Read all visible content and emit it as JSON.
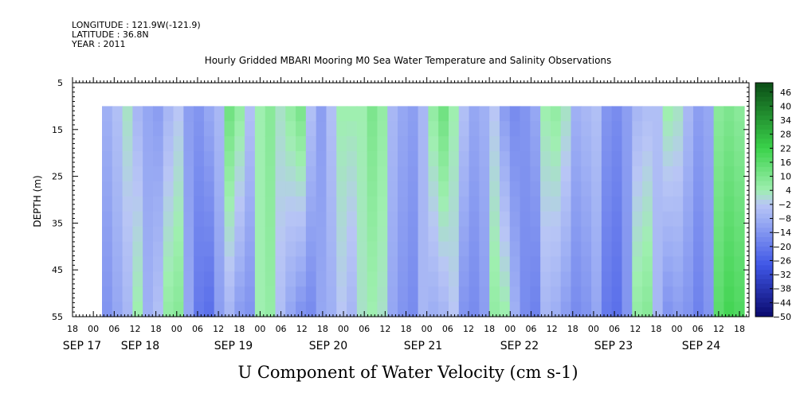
{
  "header": {
    "lines": [
      "LONGITUDE : 121.9W(-121.9)",
      "LATITUDE : 36.8N",
      "YEAR : 2011"
    ],
    "title": "Hourly Gridded MBARI Mooring M0 Sea Water Temperature and Salinity Observations"
  },
  "colors": {
    "neg_strong": "#0a0a6e",
    "neg_mid": "#3f56e6",
    "neg_light": "#9fb0f4",
    "near_zero": "#b9c6f5",
    "pos_light": "#9fefb0",
    "pos_mid": "#3ad24a",
    "pos_strong": "#0b4d16"
  },
  "chart_data": {
    "type": "heatmap",
    "title": "Hourly Gridded MBARI Mooring M0 Sea Water Temperature and Salinity Observations",
    "xlabel": "U Component of Water Velocity (cm s-1)",
    "ylabel": "DEPTH (m)",
    "y_axis": {
      "min": 5,
      "max": 55,
      "ticks": [
        5,
        15,
        25,
        35,
        45,
        55
      ],
      "inverted": true
    },
    "x_axis": {
      "hour_labels": [
        "18",
        "00",
        "06",
        "12",
        "18",
        "00",
        "06",
        "12",
        "18",
        "00",
        "06",
        "12",
        "18",
        "00",
        "06",
        "12",
        "18",
        "00",
        "06",
        "12",
        "18",
        "00",
        "06",
        "12",
        "18",
        "00",
        "06",
        "12",
        "18",
        "00",
        "06",
        "12",
        "18"
      ],
      "day_labels": [
        "SEP 17",
        "SEP 18",
        "SEP 19",
        "SEP 20",
        "SEP 21",
        "SEP 22",
        "SEP 23",
        "SEP 24"
      ]
    },
    "colorbar": {
      "levels": [
        46,
        40,
        34,
        28,
        22,
        16,
        10,
        4,
        -2,
        -8,
        -14,
        -20,
        -26,
        -32,
        -38,
        -44,
        -50
      ],
      "min": -50,
      "max": 50
    },
    "data_extent": {
      "depth_top": 10,
      "depth_bottom": 55,
      "start_hour": "SEP 17 00",
      "end_hour": "SEP 24 19"
    },
    "columns": [
      {
        "top": -8,
        "bottom": -14
      },
      {
        "top": -4,
        "bottom": -10
      },
      {
        "top": 2,
        "bottom": -6
      },
      {
        "top": -6,
        "bottom": 4
      },
      {
        "top": -10,
        "bottom": -8
      },
      {
        "top": -12,
        "bottom": -4
      },
      {
        "top": -6,
        "bottom": 6
      },
      {
        "top": -2,
        "bottom": 8
      },
      {
        "top": -12,
        "bottom": -10
      },
      {
        "top": -14,
        "bottom": -20
      },
      {
        "top": -10,
        "bottom": -22
      },
      {
        "top": -6,
        "bottom": -12
      },
      {
        "top": 12,
        "bottom": -6
      },
      {
        "top": 6,
        "bottom": -12
      },
      {
        "top": -4,
        "bottom": -14
      },
      {
        "top": 4,
        "bottom": 4
      },
      {
        "top": 8,
        "bottom": 6
      },
      {
        "top": 2,
        "bottom": -4
      },
      {
        "top": 6,
        "bottom": -10
      },
      {
        "top": 10,
        "bottom": -14
      },
      {
        "top": -4,
        "bottom": -16
      },
      {
        "top": -12,
        "bottom": -10
      },
      {
        "top": -4,
        "bottom": -8
      },
      {
        "top": 4,
        "bottom": -2
      },
      {
        "top": 4,
        "bottom": -6
      },
      {
        "top": 4,
        "bottom": 2
      },
      {
        "top": 10,
        "bottom": 4
      },
      {
        "top": 6,
        "bottom": 2
      },
      {
        "top": -6,
        "bottom": -10
      },
      {
        "top": -10,
        "bottom": -14
      },
      {
        "top": -12,
        "bottom": -16
      },
      {
        "top": -6,
        "bottom": -6
      },
      {
        "top": 6,
        "bottom": -8
      },
      {
        "top": 12,
        "bottom": -6
      },
      {
        "top": 4,
        "bottom": -2
      },
      {
        "top": -4,
        "bottom": -14
      },
      {
        "top": -10,
        "bottom": -16
      },
      {
        "top": -8,
        "bottom": -12
      },
      {
        "top": -2,
        "bottom": 6
      },
      {
        "top": -12,
        "bottom": 4
      },
      {
        "top": -16,
        "bottom": -8
      },
      {
        "top": -14,
        "bottom": -16
      },
      {
        "top": -10,
        "bottom": -18
      },
      {
        "top": 4,
        "bottom": -6
      },
      {
        "top": 6,
        "bottom": -8
      },
      {
        "top": 2,
        "bottom": -12
      },
      {
        "top": -8,
        "bottom": -16
      },
      {
        "top": -6,
        "bottom": -14
      },
      {
        "top": -4,
        "bottom": -10
      },
      {
        "top": -14,
        "bottom": -20
      },
      {
        "top": -16,
        "bottom": -22
      },
      {
        "top": -12,
        "bottom": -14
      },
      {
        "top": -6,
        "bottom": 6
      },
      {
        "top": -4,
        "bottom": 8
      },
      {
        "top": -4,
        "bottom": -6
      },
      {
        "top": 4,
        "bottom": -14
      },
      {
        "top": 2,
        "bottom": -12
      },
      {
        "top": -6,
        "bottom": -14
      },
      {
        "top": -12,
        "bottom": -18
      },
      {
        "top": -10,
        "bottom": -14
      },
      {
        "top": 8,
        "bottom": 16
      },
      {
        "top": 10,
        "bottom": 20
      },
      {
        "top": 8,
        "bottom": 18
      }
    ]
  }
}
